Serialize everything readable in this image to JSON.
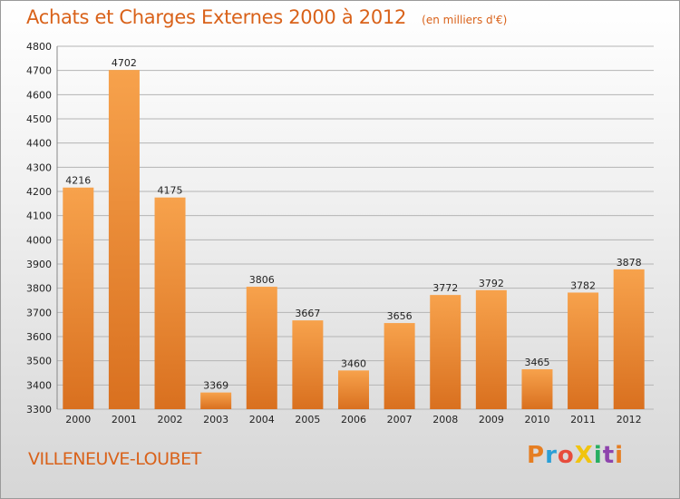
{
  "chart_data": {
    "type": "bar",
    "title": "Achats et Charges Externes 2000 à 2012",
    "subtitle": "(en milliers d'€)",
    "categories": [
      "2000",
      "2001",
      "2002",
      "2003",
      "2004",
      "2005",
      "2006",
      "2007",
      "2008",
      "2009",
      "2010",
      "2011",
      "2012"
    ],
    "values": [
      4216,
      4702,
      4175,
      3369,
      3806,
      3667,
      3460,
      3656,
      3772,
      3792,
      3465,
      3782,
      3878
    ],
    "ylim": [
      3300,
      4800
    ],
    "yticks": [
      3300,
      3400,
      3500,
      3600,
      3700,
      3800,
      3900,
      4000,
      4100,
      4200,
      4300,
      4400,
      4500,
      4600,
      4700,
      4800
    ],
    "grid": true,
    "bar_color_light": "#f7a24c",
    "bar_color_dark": "#d9701f"
  },
  "footer": {
    "place": "VILLENEUVE-LOUBET",
    "logo": "ProXiti"
  },
  "colors": {
    "title": "#d9621a",
    "logo_letters": [
      "#e67e22",
      "#2a9fd6",
      "#e74c3c",
      "#f1c40f",
      "#27ae60",
      "#8e44ad",
      "#e67e22"
    ]
  }
}
